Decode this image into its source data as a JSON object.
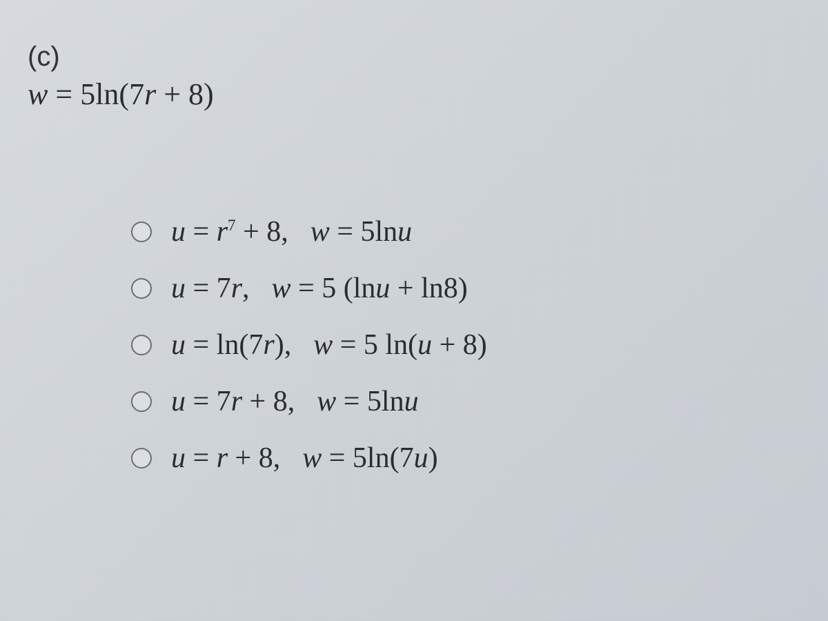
{
  "question": {
    "part_label": "(c)",
    "prompt_html": "<span class='mi'>w</span> <span class='roman'>=</span> <span class='roman'>5ln(7</span><span class='mi'>r</span> <span class='roman'>+ 8)</span>"
  },
  "options": [
    {
      "id": "opt1",
      "html": "<span class='mi'>u</span> <span class='roman'>=</span> <span class='mi'>r</span><sup>7</sup> <span class='roman'>+ 8,</span><span class='sep'></span><span class='mi'>w</span> <span class='roman'>= 5ln</span><span class='mi'>u</span>"
    },
    {
      "id": "opt2",
      "html": "<span class='mi'>u</span> <span class='roman'>= 7</span><span class='mi'>r</span><span class='roman'>,</span><span class='sep'></span><span class='mi'>w</span> <span class='roman'>= 5 (ln</span><span class='mi'>u</span> <span class='roman'>+ ln8)</span>"
    },
    {
      "id": "opt3",
      "html": "<span class='mi'>u</span> <span class='roman'>= ln(7</span><span class='mi'>r</span><span class='roman'>),</span><span class='sep'></span><span class='mi'>w</span> <span class='roman'>= 5 ln(</span><span class='mi'>u</span> <span class='roman'>+ 8)</span>"
    },
    {
      "id": "opt4",
      "html": "<span class='mi'>u</span> <span class='roman'>= 7</span><span class='mi'>r</span> <span class='roman'>+ 8,</span><span class='sep'></span><span class='mi'>w</span> <span class='roman'>= 5ln</span><span class='mi'>u</span>"
    },
    {
      "id": "opt5",
      "html": "<span class='mi'>u</span> <span class='roman'>=</span> <span class='mi'>r</span> <span class='roman'>+ 8,</span><span class='sep'></span><span class='mi'>w</span> <span class='roman'>= 5ln(7</span><span class='mi'>u</span><span class='roman'>)</span>"
    }
  ]
}
